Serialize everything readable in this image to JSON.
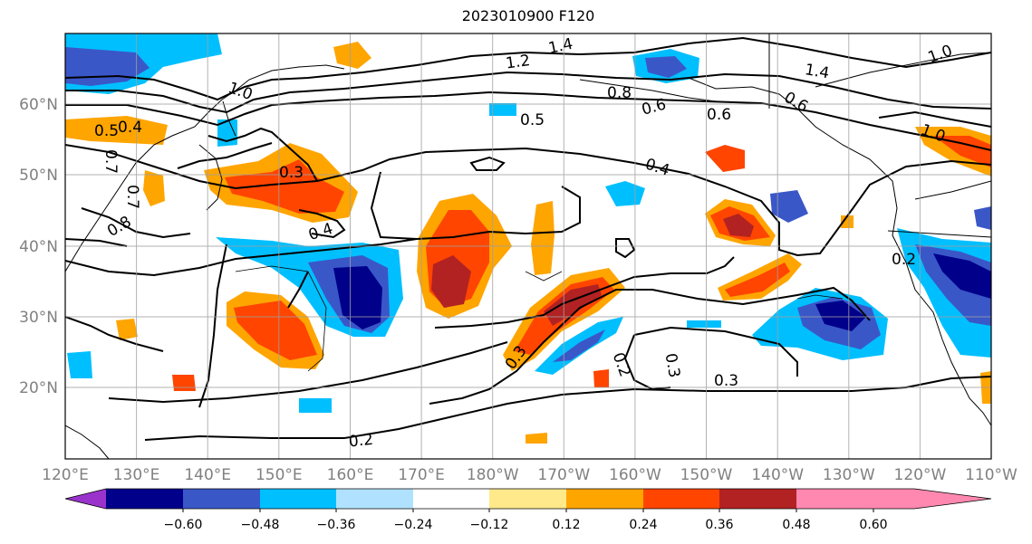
{
  "title": "2023010900 F120",
  "lon_labels": [
    "120°E",
    "130°E",
    "140°E",
    "150°E",
    "160°E",
    "170°E",
    "180°W",
    "170°W",
    "160°W",
    "150°W",
    "140°W",
    "130°W",
    "120°W",
    "110°W"
  ],
  "lat_labels": [
    "60°N",
    "50°N",
    "40°N",
    "30°N",
    "20°N"
  ],
  "colorbar": {
    "tick_labels": [
      "−0.60",
      "−0.48",
      "−0.36",
      "−0.24",
      "−0.12",
      "0.12",
      "0.24",
      "0.36",
      "0.48",
      "0.60"
    ],
    "colors": [
      "#9a33cc",
      "#00008b",
      "#3a57c8",
      "#00bfff",
      "#b0e2ff",
      "#ffffff",
      "#ffe98a",
      "#ffa500",
      "#ff4500",
      "#b22222",
      "#ff88b0"
    ]
  },
  "contour_labels": [
    "1.4",
    "1.2",
    "1.0",
    "0.8",
    "0.6",
    "0.5",
    "0.4",
    "0.6",
    "0.5",
    "0.4",
    "0.3",
    "0.4",
    "0.3",
    "0.2",
    "0.3",
    "0.3",
    "0.2",
    "1.0",
    "1.0",
    "1.4",
    "0.6",
    "0.7",
    "0.7",
    "0.8",
    "0.2"
  ]
}
